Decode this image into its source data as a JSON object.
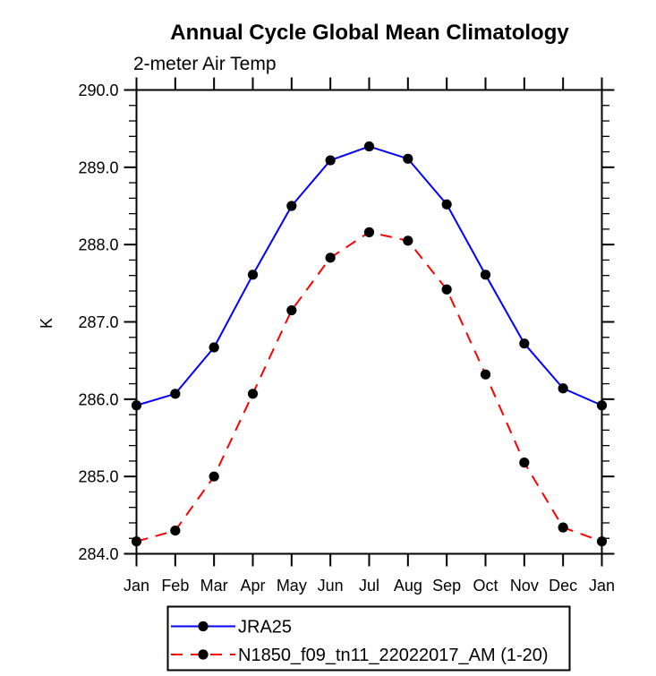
{
  "chart_data": {
    "type": "line",
    "title": "Annual Cycle Global Mean Climatology",
    "subtitle": "2-meter Air Temp",
    "ylabel": "K",
    "xlabel": "",
    "categories": [
      "Jan",
      "Feb",
      "Mar",
      "Apr",
      "May",
      "Jun",
      "Jul",
      "Aug",
      "Sep",
      "Oct",
      "Nov",
      "Dec",
      "Jan"
    ],
    "ylim": [
      284.0,
      290.0
    ],
    "ytick_step": 1.0,
    "yminor_step": 0.2,
    "ytick_labels": [
      "284.0",
      "285.0",
      "286.0",
      "287.0",
      "288.0",
      "289.0",
      "290.0"
    ],
    "grid": false,
    "legend_position": "bottom-outside",
    "series": [
      {
        "name": "JRA25",
        "color": "#0000ff",
        "line_style": "solid",
        "marker": "filled-circle",
        "marker_color": "#000000",
        "values": [
          285.92,
          286.07,
          286.67,
          287.61,
          288.5,
          289.09,
          289.27,
          289.11,
          288.52,
          287.61,
          286.72,
          286.14,
          285.92
        ]
      },
      {
        "name": "N1850_f09_tn11_22022017_AM (1-20)",
        "color": "#ff0000",
        "line_style": "dashed",
        "marker": "filled-circle",
        "marker_color": "#000000",
        "values": [
          284.16,
          284.3,
          285.0,
          286.07,
          287.15,
          287.83,
          288.16,
          288.05,
          287.42,
          286.32,
          285.18,
          284.34,
          284.16
        ]
      }
    ]
  },
  "colors": {
    "axis": "#000000",
    "background": "#ffffff",
    "series1": "#0000ff",
    "series2": "#ff0000",
    "marker": "#000000"
  }
}
